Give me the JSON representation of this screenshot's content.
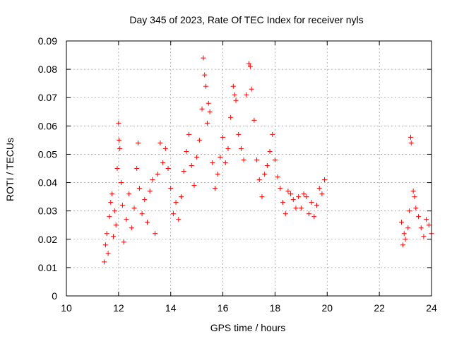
{
  "chart_data": {
    "type": "scatter",
    "title": "Day 345 of 2023, Rate Of TEC Index for receiver nyls",
    "xlabel": "GPS time / hours",
    "ylabel": "ROTI / TECUs",
    "xlim": [
      10,
      24
    ],
    "ylim": [
      0,
      0.09
    ],
    "x_ticks": [
      10,
      12,
      14,
      16,
      18,
      20,
      22,
      24
    ],
    "y_ticks": [
      0,
      0.01,
      0.02,
      0.03,
      0.04,
      0.05,
      0.06,
      0.07,
      0.08,
      0.09
    ],
    "x_tick_labels": [
      "10",
      "12",
      "14",
      "16",
      "18",
      "20",
      "22",
      "24"
    ],
    "y_tick_labels": [
      "0",
      "0.01",
      "0.02",
      "0.03",
      "0.04",
      "0.05",
      "0.06",
      "0.07",
      "0.08",
      "0.09"
    ],
    "grid": true,
    "marker": "plus",
    "marker_color": "#ff0000",
    "series": [
      {
        "points": [
          [
            11.45,
            0.012
          ],
          [
            11.5,
            0.018
          ],
          [
            11.55,
            0.022
          ],
          [
            11.6,
            0.015
          ],
          [
            11.65,
            0.028
          ],
          [
            11.7,
            0.033
          ],
          [
            11.75,
            0.036
          ],
          [
            11.8,
            0.021
          ],
          [
            11.85,
            0.03
          ],
          [
            11.9,
            0.025
          ],
          [
            11.95,
            0.045
          ],
          [
            12.0,
            0.061
          ],
          [
            12.02,
            0.055
          ],
          [
            12.05,
            0.052
          ],
          [
            12.1,
            0.04
          ],
          [
            12.15,
            0.032
          ],
          [
            12.2,
            0.019
          ],
          [
            12.3,
            0.027
          ],
          [
            12.4,
            0.036
          ],
          [
            12.5,
            0.024
          ],
          [
            12.6,
            0.031
          ],
          [
            12.7,
            0.045
          ],
          [
            12.75,
            0.054
          ],
          [
            12.8,
            0.038
          ],
          [
            12.9,
            0.029
          ],
          [
            13.0,
            0.034
          ],
          [
            13.1,
            0.026
          ],
          [
            13.2,
            0.037
          ],
          [
            13.3,
            0.041
          ],
          [
            13.4,
            0.022
          ],
          [
            13.5,
            0.043
          ],
          [
            13.6,
            0.054
          ],
          [
            13.7,
            0.047
          ],
          [
            13.8,
            0.052
          ],
          [
            13.9,
            0.045
          ],
          [
            14.0,
            0.038
          ],
          [
            14.1,
            0.029
          ],
          [
            14.2,
            0.033
          ],
          [
            14.3,
            0.027
          ],
          [
            14.4,
            0.035
          ],
          [
            14.5,
            0.044
          ],
          [
            14.6,
            0.051
          ],
          [
            14.7,
            0.057
          ],
          [
            14.8,
            0.046
          ],
          [
            14.9,
            0.039
          ],
          [
            15.0,
            0.049
          ],
          [
            15.1,
            0.055
          ],
          [
            15.2,
            0.066
          ],
          [
            15.25,
            0.084
          ],
          [
            15.3,
            0.078
          ],
          [
            15.35,
            0.074
          ],
          [
            15.4,
            0.061
          ],
          [
            15.45,
            0.068
          ],
          [
            15.5,
            0.065
          ],
          [
            15.6,
            0.047
          ],
          [
            15.7,
            0.038
          ],
          [
            15.8,
            0.043
          ],
          [
            15.9,
            0.049
          ],
          [
            16.0,
            0.056
          ],
          [
            16.1,
            0.047
          ],
          [
            16.2,
            0.052
          ],
          [
            16.3,
            0.063
          ],
          [
            16.4,
            0.074
          ],
          [
            16.45,
            0.071
          ],
          [
            16.5,
            0.069
          ],
          [
            16.6,
            0.057
          ],
          [
            16.7,
            0.052
          ],
          [
            16.8,
            0.048
          ],
          [
            16.9,
            0.071
          ],
          [
            17.0,
            0.082
          ],
          [
            17.05,
            0.081
          ],
          [
            17.1,
            0.073
          ],
          [
            17.2,
            0.062
          ],
          [
            17.3,
            0.048
          ],
          [
            17.4,
            0.041
          ],
          [
            17.5,
            0.035
          ],
          [
            17.6,
            0.043
          ],
          [
            17.7,
            0.046
          ],
          [
            17.8,
            0.051
          ],
          [
            17.9,
            0.057
          ],
          [
            18.0,
            0.048
          ],
          [
            18.1,
            0.042
          ],
          [
            18.2,
            0.038
          ],
          [
            18.3,
            0.033
          ],
          [
            18.4,
            0.029
          ],
          [
            18.5,
            0.037
          ],
          [
            18.6,
            0.036
          ],
          [
            18.7,
            0.034
          ],
          [
            18.8,
            0.031
          ],
          [
            18.9,
            0.035
          ],
          [
            19.0,
            0.031
          ],
          [
            19.1,
            0.036
          ],
          [
            19.2,
            0.035
          ],
          [
            19.3,
            0.029
          ],
          [
            19.4,
            0.033
          ],
          [
            19.5,
            0.028
          ],
          [
            19.6,
            0.032
          ],
          [
            19.7,
            0.038
          ],
          [
            19.8,
            0.036
          ],
          [
            19.9,
            0.041
          ],
          [
            22.85,
            0.026
          ],
          [
            22.9,
            0.018
          ],
          [
            22.95,
            0.022
          ],
          [
            23.0,
            0.02
          ],
          [
            23.1,
            0.024
          ],
          [
            23.15,
            0.03
          ],
          [
            23.2,
            0.056
          ],
          [
            23.22,
            0.054
          ],
          [
            23.3,
            0.037
          ],
          [
            23.35,
            0.035
          ],
          [
            23.4,
            0.031
          ],
          [
            23.5,
            0.028
          ],
          [
            23.6,
            0.024
          ],
          [
            23.7,
            0.021
          ],
          [
            23.8,
            0.027
          ],
          [
            23.9,
            0.025
          ],
          [
            24.0,
            0.022
          ]
        ]
      }
    ]
  }
}
